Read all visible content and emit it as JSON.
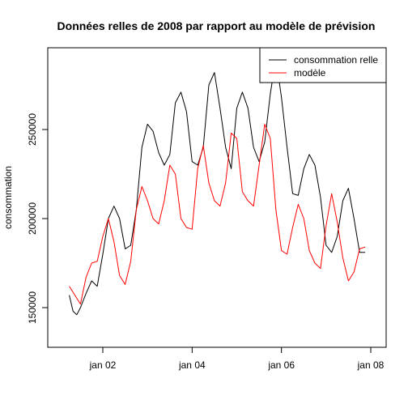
{
  "chart_data": {
    "type": "line",
    "title": "Données relles de 2008 par rapport au modèle de prévision",
    "xlabel": "",
    "ylabel": "consommation",
    "x_unit": "date (2008)",
    "xlim": [
      "2008-01-01",
      "2008-01-08"
    ],
    "ylim": [
      125000,
      293000
    ],
    "x_ticks": [
      {
        "x": "2008-01-02",
        "label": "jan 02"
      },
      {
        "x": "2008-01-04",
        "label": "jan 04"
      },
      {
        "x": "2008-01-06",
        "label": "jan 06"
      },
      {
        "x": "2008-01-08",
        "label": "jan 08"
      }
    ],
    "y_ticks": [
      {
        "y": 150000,
        "label": "150000"
      },
      {
        "y": 200000,
        "label": "200000"
      },
      {
        "y": 250000,
        "label": "250000"
      }
    ],
    "legend_position": "top-right",
    "series": [
      {
        "name": "consommation relle",
        "color": "#000000",
        "points": [
          [
            "2008-01-01 06:00",
            157000
          ],
          [
            "2008-01-01 08:00",
            148000
          ],
          [
            "2008-01-01 10:00",
            146000
          ],
          [
            "2008-01-01 12:00",
            150000
          ],
          [
            "2008-01-01 15:00",
            158000
          ],
          [
            "2008-01-01 18:00",
            165000
          ],
          [
            "2008-01-01 21:00",
            162000
          ],
          [
            "2008-01-02 00:00",
            180000
          ],
          [
            "2008-01-02 03:00",
            200000
          ],
          [
            "2008-01-02 06:00",
            207000
          ],
          [
            "2008-01-02 09:00",
            200000
          ],
          [
            "2008-01-02 12:00",
            183000
          ],
          [
            "2008-01-02 15:00",
            185000
          ],
          [
            "2008-01-02 18:00",
            205000
          ],
          [
            "2008-01-02 21:00",
            240000
          ],
          [
            "2008-01-03 00:00",
            253000
          ],
          [
            "2008-01-03 03:00",
            249000
          ],
          [
            "2008-01-03 06:00",
            237000
          ],
          [
            "2008-01-03 09:00",
            230000
          ],
          [
            "2008-01-03 12:00",
            236000
          ],
          [
            "2008-01-03 15:00",
            265000
          ],
          [
            "2008-01-03 18:00",
            271000
          ],
          [
            "2008-01-03 21:00",
            260000
          ],
          [
            "2008-01-04 00:00",
            232000
          ],
          [
            "2008-01-04 03:00",
            230000
          ],
          [
            "2008-01-04 06:00",
            240000
          ],
          [
            "2008-01-04 09:00",
            275000
          ],
          [
            "2008-01-04 12:00",
            282000
          ],
          [
            "2008-01-04 15:00",
            262000
          ],
          [
            "2008-01-04 18:00",
            240000
          ],
          [
            "2008-01-04 21:00",
            228000
          ],
          [
            "2008-01-05 00:00",
            262000
          ],
          [
            "2008-01-05 03:00",
            271000
          ],
          [
            "2008-01-05 06:00",
            262000
          ],
          [
            "2008-01-05 09:00",
            240000
          ],
          [
            "2008-01-05 12:00",
            232000
          ],
          [
            "2008-01-05 15:00",
            243000
          ],
          [
            "2008-01-05 18:00",
            270000
          ],
          [
            "2008-01-05 21:00",
            290000
          ],
          [
            "2008-01-06 00:00",
            268000
          ],
          [
            "2008-01-06 03:00",
            240000
          ],
          [
            "2008-01-06 06:00",
            214000
          ],
          [
            "2008-01-06 09:00",
            213000
          ],
          [
            "2008-01-06 12:00",
            228000
          ],
          [
            "2008-01-06 15:00",
            236000
          ],
          [
            "2008-01-06 18:00",
            230000
          ],
          [
            "2008-01-06 21:00",
            212000
          ],
          [
            "2008-01-07 00:00",
            185000
          ],
          [
            "2008-01-07 03:00",
            181000
          ],
          [
            "2008-01-07 06:00",
            190000
          ],
          [
            "2008-01-07 09:00",
            210000
          ],
          [
            "2008-01-07 12:00",
            217000
          ],
          [
            "2008-01-07 15:00",
            200000
          ],
          [
            "2008-01-07 18:00",
            181000
          ],
          [
            "2008-01-07 21:00",
            181000
          ]
        ]
      },
      {
        "name": "modèle",
        "color": "#ff0000",
        "points": [
          [
            "2008-01-01 06:00",
            162000
          ],
          [
            "2008-01-01 09:00",
            157000
          ],
          [
            "2008-01-01 12:00",
            152000
          ],
          [
            "2008-01-01 15:00",
            167000
          ],
          [
            "2008-01-01 18:00",
            175000
          ],
          [
            "2008-01-01 21:00",
            176000
          ],
          [
            "2008-01-02 00:00",
            190000
          ],
          [
            "2008-01-02 03:00",
            200000
          ],
          [
            "2008-01-02 06:00",
            187000
          ],
          [
            "2008-01-02 09:00",
            168000
          ],
          [
            "2008-01-02 12:00",
            163000
          ],
          [
            "2008-01-02 15:00",
            176000
          ],
          [
            "2008-01-02 18:00",
            205000
          ],
          [
            "2008-01-02 21:00",
            218000
          ],
          [
            "2008-01-03 00:00",
            210000
          ],
          [
            "2008-01-03 03:00",
            200000
          ],
          [
            "2008-01-03 06:00",
            197000
          ],
          [
            "2008-01-03 09:00",
            210000
          ],
          [
            "2008-01-03 12:00",
            230000
          ],
          [
            "2008-01-03 15:00",
            225000
          ],
          [
            "2008-01-03 18:00",
            200000
          ],
          [
            "2008-01-03 21:00",
            195000
          ],
          [
            "2008-01-04 00:00",
            194000
          ],
          [
            "2008-01-04 03:00",
            228000
          ],
          [
            "2008-01-04 06:00",
            241000
          ],
          [
            "2008-01-04 09:00",
            220000
          ],
          [
            "2008-01-04 12:00",
            210000
          ],
          [
            "2008-01-04 15:00",
            207000
          ],
          [
            "2008-01-04 18:00",
            220000
          ],
          [
            "2008-01-04 21:00",
            248000
          ],
          [
            "2008-01-05 00:00",
            245000
          ],
          [
            "2008-01-05 03:00",
            215000
          ],
          [
            "2008-01-05 06:00",
            210000
          ],
          [
            "2008-01-05 09:00",
            207000
          ],
          [
            "2008-01-05 12:00",
            230000
          ],
          [
            "2008-01-05 15:00",
            253000
          ],
          [
            "2008-01-05 18:00",
            245000
          ],
          [
            "2008-01-05 21:00",
            205000
          ],
          [
            "2008-01-06 00:00",
            182000
          ],
          [
            "2008-01-06 03:00",
            180000
          ],
          [
            "2008-01-06 06:00",
            195000
          ],
          [
            "2008-01-06 09:00",
            208000
          ],
          [
            "2008-01-06 12:00",
            200000
          ],
          [
            "2008-01-06 15:00",
            182000
          ],
          [
            "2008-01-06 18:00",
            175000
          ],
          [
            "2008-01-06 21:00",
            172000
          ],
          [
            "2008-01-07 00:00",
            196000
          ],
          [
            "2008-01-07 03:00",
            214000
          ],
          [
            "2008-01-07 06:00",
            198000
          ],
          [
            "2008-01-07 09:00",
            178000
          ],
          [
            "2008-01-07 12:00",
            165000
          ],
          [
            "2008-01-07 15:00",
            170000
          ],
          [
            "2008-01-07 18:00",
            183000
          ],
          [
            "2008-01-07 21:00",
            184000
          ]
        ]
      }
    ]
  }
}
